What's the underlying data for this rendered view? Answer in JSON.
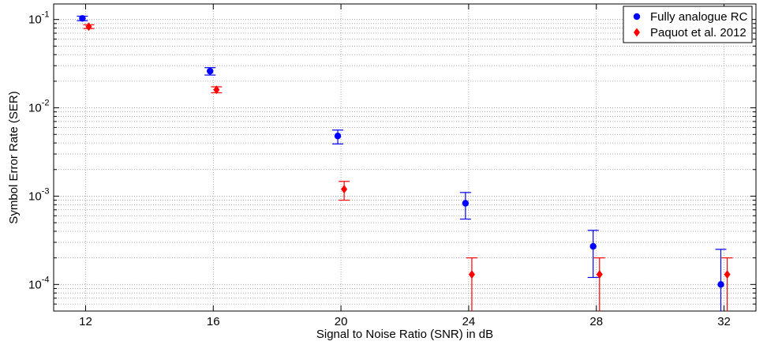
{
  "chart_data": {
    "type": "scatter",
    "title": "",
    "xlabel": "Signal to Noise Ratio (SNR) in dB",
    "ylabel": "Symbol Error Rate (SER)",
    "xlim": [
      11,
      33
    ],
    "ylim": [
      5e-05,
      0.15
    ],
    "yscale": "log",
    "xticks": [
      12,
      16,
      20,
      24,
      28,
      32
    ],
    "xtick_labels": [
      "12",
      "16",
      "20",
      "24",
      "28",
      "32"
    ],
    "yticks": [
      0.0001,
      0.001,
      0.01,
      0.1
    ],
    "ytick_labels": [
      {
        "base": "10",
        "exp": "-4"
      },
      {
        "base": "10",
        "exp": "-3"
      },
      {
        "base": "10",
        "exp": "-2"
      },
      {
        "base": "10",
        "exp": "-1"
      }
    ],
    "grid": "major and minor, dotted",
    "legend_position": "top-right",
    "series": [
      {
        "name": "Fully analogue RC",
        "marker": "circle",
        "color": "#0000ff",
        "x": [
          11.9,
          15.9,
          19.9,
          23.9,
          27.9,
          31.9
        ],
        "y": [
          0.103,
          0.026,
          0.0048,
          0.00083,
          0.00027,
          0.0001
        ],
        "err_low": [
          0.097,
          0.0235,
          0.0039,
          0.00055,
          0.00012,
          4e-05
        ],
        "err_high": [
          0.109,
          0.0285,
          0.0056,
          0.0011,
          0.00041,
          0.00025
        ]
      },
      {
        "name": "Paquot et al. 2012",
        "marker": "diamond",
        "color": "#ff0000",
        "x": [
          12.1,
          16.1,
          20.1,
          24.1,
          28.1,
          32.1
        ],
        "y": [
          0.083,
          0.016,
          0.0012,
          0.00013,
          0.00013,
          0.00013
        ],
        "err_low": [
          0.079,
          0.0148,
          0.0009,
          4e-05,
          4e-05,
          4e-05
        ],
        "err_high": [
          0.087,
          0.0173,
          0.00147,
          0.0002,
          0.0002,
          0.0002
        ]
      }
    ]
  }
}
